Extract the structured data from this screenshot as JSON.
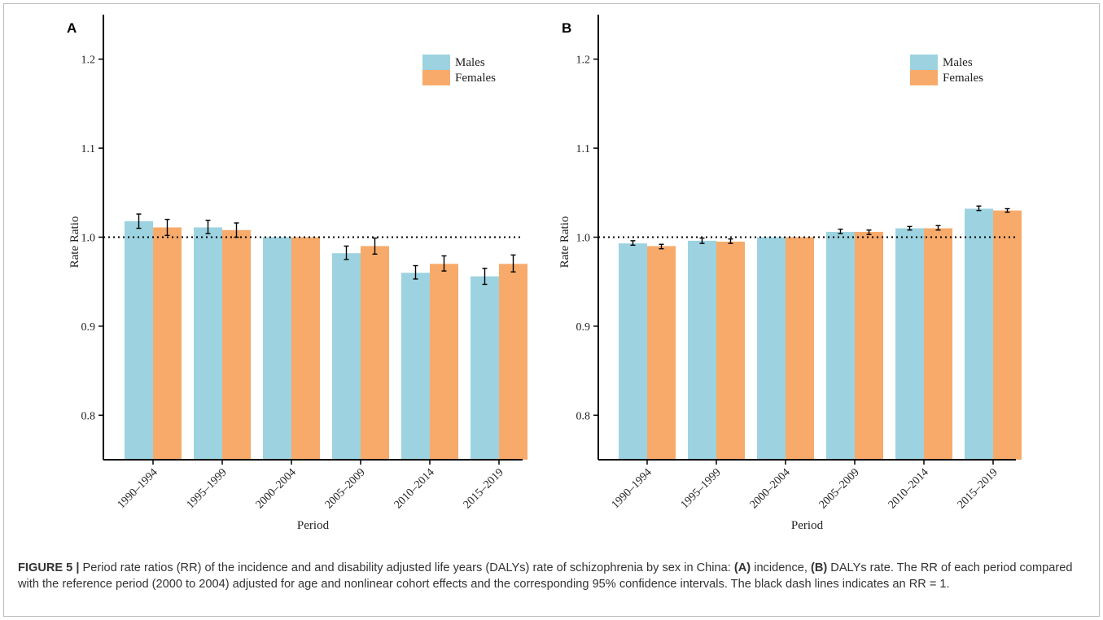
{
  "chart_data": [
    {
      "panel_label": "A",
      "type": "bar",
      "xlabel": "Period",
      "ylabel": "Rate Ratio",
      "ylim": [
        0.75,
        1.25
      ],
      "yticks": [
        "0.8",
        "0.9",
        "1.0",
        "1.1",
        "1.2"
      ],
      "categories": [
        "1990–1994",
        "1995–1999",
        "2000–2004",
        "2005–2009",
        "2010–2014",
        "2015–2019"
      ],
      "reference_line": 1.0,
      "legend_position": "top-right",
      "series": [
        {
          "name": "Males",
          "color": "#9dd3e0",
          "values": [
            1.018,
            1.011,
            1.0,
            0.982,
            0.96,
            0.956
          ],
          "ci_low": [
            1.01,
            1.004,
            1.0,
            0.975,
            0.953,
            0.947
          ],
          "ci_high": [
            1.026,
            1.019,
            1.0,
            0.99,
            0.968,
            0.965
          ]
        },
        {
          "name": "Females",
          "color": "#f7aa6a",
          "values": [
            1.011,
            1.008,
            1.0,
            0.99,
            0.97,
            0.97
          ],
          "ci_low": [
            1.002,
            1.0,
            1.0,
            0.981,
            0.962,
            0.961
          ],
          "ci_high": [
            1.02,
            1.016,
            1.0,
            0.999,
            0.979,
            0.98
          ]
        }
      ]
    },
    {
      "panel_label": "B",
      "type": "bar",
      "xlabel": "Period",
      "ylabel": "Rate Ratio",
      "ylim": [
        0.75,
        1.25
      ],
      "yticks": [
        "0.8",
        "0.9",
        "1.0",
        "1.1",
        "1.2"
      ],
      "categories": [
        "1990–1994",
        "1995–1999",
        "2000–2004",
        "2005–2009",
        "2010–2014",
        "2015–2019"
      ],
      "reference_line": 1.0,
      "legend_position": "top-right",
      "series": [
        {
          "name": "Males",
          "color": "#9dd3e0",
          "values": [
            0.993,
            0.996,
            1.0,
            1.006,
            1.01,
            1.032
          ],
          "ci_low": [
            0.991,
            0.993,
            1.0,
            1.004,
            1.008,
            1.03
          ],
          "ci_high": [
            0.996,
            0.999,
            1.0,
            1.009,
            1.012,
            1.035
          ]
        },
        {
          "name": "Females",
          "color": "#f7aa6a",
          "values": [
            0.99,
            0.995,
            1.0,
            1.006,
            1.01,
            1.03
          ],
          "ci_low": [
            0.987,
            0.993,
            1.0,
            1.003,
            1.008,
            1.028
          ],
          "ci_high": [
            0.992,
            0.998,
            1.0,
            1.008,
            1.013,
            1.032
          ]
        }
      ]
    }
  ],
  "caption": {
    "label": "FIGURE 5 |",
    "text_1": " Period rate ratios (RR) of the incidence and and disability adjusted life years (DALYs) rate of schizophrenia by sex in China: ",
    "a_label": "(A)",
    "a_text": " incidence, ",
    "b_label": "(B)",
    "b_text": " DALYs rate. The RR of each period compared with the reference period (2000 to 2004) adjusted for age and nonlinear cohort effects and the corresponding 95% confidence intervals. The black dash lines indicates an RR = 1."
  }
}
